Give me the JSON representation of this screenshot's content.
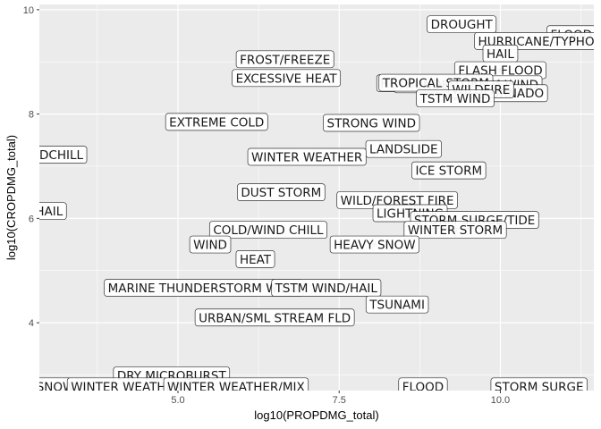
{
  "chart_data": {
    "type": "scatter",
    "title": "",
    "xlabel": "log10(PROPDMG_total)",
    "ylabel": "log10(CROPDMG_total)",
    "xlim": [
      2.85,
      11.45
    ],
    "ylim": [
      2.7,
      10.1
    ],
    "x_ticks": [
      5.0,
      7.5,
      10.0
    ],
    "x_tick_labels": [
      "5.0",
      "7.5",
      "10.0"
    ],
    "y_ticks": [
      4,
      6,
      8,
      10
    ],
    "y_tick_labels": [
      "4",
      "6",
      "8",
      "10"
    ],
    "grid": true,
    "point_color": "#7f7f7f",
    "panel_color": "#ebebeb",
    "points": [
      {
        "label": "DROUGHT",
        "x": 9.4,
        "y": 9.72
      },
      {
        "label": "FLOOD",
        "x": 11.1,
        "y": 9.53
      },
      {
        "label": "HURRICANE/TYPHOON",
        "x": 10.7,
        "y": 9.4
      },
      {
        "label": "HAIL",
        "x": 10.0,
        "y": 9.16
      },
      {
        "label": "FROST/FREEZE",
        "x": 6.66,
        "y": 9.05
      },
      {
        "label": "FLASH FLOOD",
        "x": 10.0,
        "y": 8.84
      },
      {
        "label": "EXCESSIVE HEAT",
        "x": 6.68,
        "y": 8.69
      },
      {
        "label": "HEAVY RAIN",
        "x": 8.7,
        "y": 8.59
      },
      {
        "label": "THUNDERSTORM WIND",
        "x": 9.5,
        "y": 8.57
      },
      {
        "label": "TROPICAL STORM",
        "x": 9.0,
        "y": 8.6
      },
      {
        "label": "TORNADO",
        "x": 10.2,
        "y": 8.4
      },
      {
        "label": "WILDFIRE",
        "x": 9.7,
        "y": 8.47
      },
      {
        "label": "TSTM WIND",
        "x": 9.3,
        "y": 8.3
      },
      {
        "label": "EXTREME COLD",
        "x": 5.6,
        "y": 7.85
      },
      {
        "label": "STRONG WIND",
        "x": 8.0,
        "y": 7.83
      },
      {
        "label": "WINDCHILL",
        "x": 3.0,
        "y": 7.22
      },
      {
        "label": "LANDSLIDE",
        "x": 8.5,
        "y": 7.33
      },
      {
        "label": "WINTER WEATHER",
        "x": 7.0,
        "y": 7.18
      },
      {
        "label": "ICE STORM",
        "x": 9.2,
        "y": 6.92
      },
      {
        "label": "DUST STORM",
        "x": 6.6,
        "y": 6.5
      },
      {
        "label": "WILD/FOREST FIRE",
        "x": 8.4,
        "y": 6.35
      },
      {
        "label": "HAIL",
        "x": 3.0,
        "y": 6.14
      },
      {
        "label": "LIGHTNING",
        "x": 8.6,
        "y": 6.1
      },
      {
        "label": "STORM SURGE/TIDE",
        "x": 9.6,
        "y": 5.97
      },
      {
        "label": "COLD/WIND CHILL",
        "x": 6.4,
        "y": 5.78
      },
      {
        "label": "WINTER STORM",
        "x": 9.3,
        "y": 5.78
      },
      {
        "label": "WIND",
        "x": 5.5,
        "y": 5.5
      },
      {
        "label": "HEAVY SNOW",
        "x": 8.05,
        "y": 5.5
      },
      {
        "label": "HEAT",
        "x": 6.2,
        "y": 5.22
      },
      {
        "label": "MARINE THUNDERSTORM WIND",
        "x": 5.4,
        "y": 4.67
      },
      {
        "label": "TSTM WIND/HAIL",
        "x": 7.3,
        "y": 4.67
      },
      {
        "label": "TSUNAMI",
        "x": 8.4,
        "y": 4.35
      },
      {
        "label": "URBAN/SML STREAM FLD",
        "x": 6.5,
        "y": 4.1
      },
      {
        "label": "DRY MICROBURST",
        "x": 4.9,
        "y": 2.99
      },
      {
        "label": "SNOW",
        "x": 3.1,
        "y": 2.78
      },
      {
        "label": "WINTER WEATHER",
        "x": 4.2,
        "y": 2.78
      },
      {
        "label": "WINTER WEATHER/MIX",
        "x": 5.9,
        "y": 2.78
      },
      {
        "label": "FLOOD",
        "x": 8.8,
        "y": 2.78
      },
      {
        "label": "STORM SURGE",
        "x": 10.6,
        "y": 2.78
      }
    ]
  }
}
